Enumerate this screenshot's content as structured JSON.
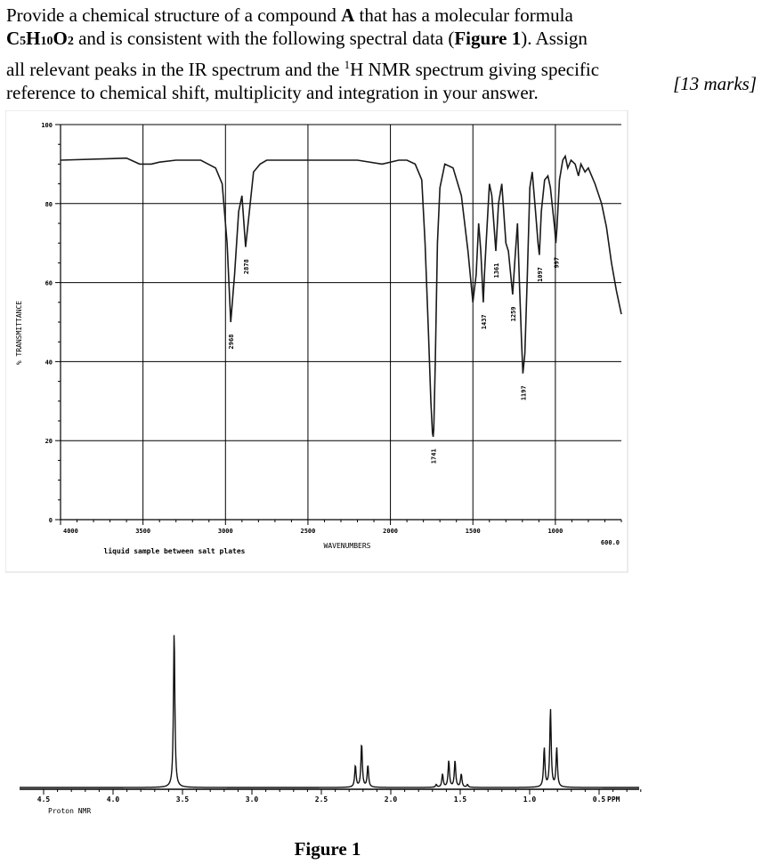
{
  "question": {
    "lines": [
      "Provide a chemical structure of a compound A that has a molecular formula",
      "C5H10O2 and is consistent with the following spectral data (Figure 1). Assign",
      "all relevant peaks in the IR spectrum and the 1H NMR spectrum giving specific",
      "reference to chemical shift, multiplicity and integration in your answer."
    ],
    "marks": "[13 marks]"
  },
  "figure_caption": "Figure 1",
  "chart_data": [
    {
      "type": "line",
      "name": "IR spectrum",
      "ylabel": "% TRANSMITTANCE",
      "xlabel": "WAVENUMBERS",
      "note": "liquid sample between salt plates",
      "xlim": [
        4000,
        600
      ],
      "ylim": [
        0,
        100
      ],
      "x_ticks": [
        "4000",
        "3500",
        "3000",
        "2500",
        "2000",
        "1500",
        "1000",
        "600.0"
      ],
      "y_ticks": [
        "100",
        "80",
        "60",
        "40",
        "20",
        "0"
      ],
      "grid": true,
      "peaks": [
        {
          "label": "2968",
          "x": 2968,
          "y": 50
        },
        {
          "label": "2878",
          "x": 2878,
          "y": 69
        },
        {
          "label": "1741",
          "x": 1741,
          "y": 21
        },
        {
          "label": "1437",
          "x": 1437,
          "y": 55
        },
        {
          "label": "1361",
          "x": 1361,
          "y": 68
        },
        {
          "label": "1259",
          "x": 1259,
          "y": 57
        },
        {
          "label": "1197",
          "x": 1197,
          "y": 37
        },
        {
          "label": "1097",
          "x": 1097,
          "y": 67
        },
        {
          "label": "997",
          "x": 997,
          "y": 70
        }
      ],
      "x": [
        4000,
        3600,
        3520,
        3450,
        3400,
        3300,
        3150,
        3060,
        3020,
        2990,
        2968,
        2945,
        2920,
        2900,
        2878,
        2860,
        2830,
        2790,
        2750,
        2600,
        2400,
        2200,
        2050,
        1950,
        1900,
        1850,
        1810,
        1790,
        1770,
        1755,
        1745,
        1741,
        1737,
        1728,
        1715,
        1700,
        1670,
        1620,
        1570,
        1530,
        1500,
        1480,
        1465,
        1452,
        1437,
        1430,
        1420,
        1400,
        1385,
        1361,
        1345,
        1325,
        1300,
        1285,
        1259,
        1245,
        1230,
        1218,
        1205,
        1197,
        1185,
        1170,
        1155,
        1140,
        1120,
        1105,
        1097,
        1085,
        1065,
        1045,
        1030,
        1015,
        1005,
        997,
        990,
        975,
        955,
        940,
        925,
        905,
        880,
        860,
        845,
        820,
        800,
        760,
        720,
        690,
        660,
        630,
        600
      ],
      "y": [
        91,
        91.5,
        90,
        90,
        90.5,
        91,
        91,
        89,
        85,
        70,
        50,
        62,
        78,
        82,
        69,
        76,
        88,
        90,
        91,
        91,
        91,
        91,
        90,
        91,
        91,
        90,
        86,
        70,
        48,
        30,
        22,
        21,
        23,
        40,
        70,
        84,
        90,
        89,
        82,
        68,
        55,
        62,
        75,
        68,
        55,
        62,
        70,
        85,
        82,
        68,
        80,
        85,
        70,
        68,
        57,
        66,
        75,
        60,
        45,
        37,
        42,
        62,
        84,
        88,
        78,
        70,
        67,
        78,
        86,
        87,
        84,
        78,
        74,
        70,
        74,
        86,
        91,
        92,
        89,
        91,
        90,
        87,
        90,
        88,
        89,
        85,
        80,
        74,
        65,
        58,
        52
      ]
    },
    {
      "type": "line",
      "name": "Proton NMR",
      "xlabel": "PPM",
      "xlim": [
        4.5,
        0.25
      ],
      "x_ticks": [
        "4.5",
        "4.0",
        "3.5",
        "3.0",
        "2.5",
        "2.0",
        "1.5",
        "1.0",
        "0.5"
      ],
      "peaks": [
        {
          "shift": 3.56,
          "multiplicity": "singlet",
          "relative_height": 1.0
        },
        {
          "shift": 2.21,
          "multiplicity": "triplet",
          "relative_height": 0.28
        },
        {
          "shift": 1.56,
          "multiplicity": "sextet",
          "relative_height": 0.17
        },
        {
          "shift": 0.85,
          "multiplicity": "triplet",
          "relative_height": 0.5
        }
      ]
    }
  ]
}
